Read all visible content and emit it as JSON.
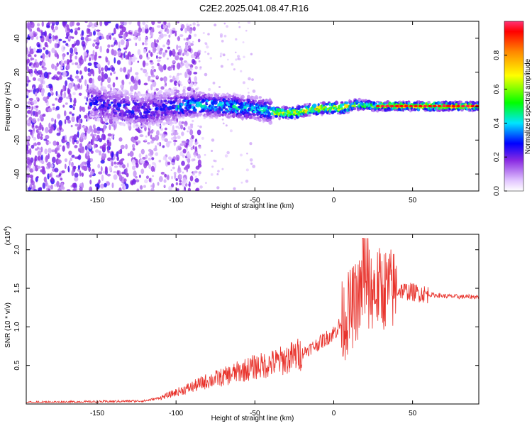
{
  "title": "C2E2.2025.041.08.47.R16",
  "chart_data": [
    {
      "type": "heatmap",
      "xlabel": "Height of straight line (km)",
      "ylabel": "Frequency (Hz)",
      "xlim": [
        -195,
        92
      ],
      "ylim": [
        -50,
        50
      ],
      "xticks": [
        -150,
        -100,
        -50,
        0,
        50
      ],
      "yticks": [
        -40,
        -20,
        0,
        20,
        40
      ],
      "colorbar": {
        "label": "Normalized spectral amplitude",
        "range": [
          0,
          1
        ],
        "ticks": [
          0.0,
          0.2,
          0.4,
          0.6,
          0.8
        ],
        "colors": [
          "#ffffff",
          "#d9b8ff",
          "#8a2be2",
          "#0000ff",
          "#00e5ff",
          "#00ff00",
          "#ffff00",
          "#ff8800",
          "#ff0000"
        ]
      },
      "signal_center_line": [
        [
          -150,
          2
        ],
        [
          -140,
          0
        ],
        [
          -120,
          -3
        ],
        [
          -100,
          0
        ],
        [
          -85,
          1
        ],
        [
          -70,
          0
        ],
        [
          -55,
          -1
        ],
        [
          -45,
          -2
        ],
        [
          -35,
          -4
        ],
        [
          -25,
          -4
        ],
        [
          -15,
          -2
        ],
        [
          -5,
          -1
        ],
        [
          5,
          -1
        ],
        [
          15,
          1
        ],
        [
          25,
          0
        ],
        [
          40,
          0
        ],
        [
          60,
          0
        ],
        [
          90,
          0
        ]
      ]
    },
    {
      "type": "line",
      "xlabel": "Height of straight line (km)",
      "ylabel": "SNR (10 * v/v)",
      "y_scale_note": "(x10",
      "y_scale_exp": "4",
      "xlim": [
        -195,
        92
      ],
      "ylim": [
        0,
        2.2
      ],
      "xticks": [
        -150,
        -100,
        -50,
        0,
        50
      ],
      "yticks": [
        0.5,
        1.0,
        1.5,
        2.0
      ],
      "color": "#e8312a",
      "envelope": [
        [
          -195,
          0.02
        ],
        [
          -150,
          0.03
        ],
        [
          -120,
          0.04
        ],
        [
          -110,
          0.08
        ],
        [
          -100,
          0.15
        ],
        [
          -90,
          0.22
        ],
        [
          -80,
          0.3
        ],
        [
          -70,
          0.35
        ],
        [
          -60,
          0.42
        ],
        [
          -50,
          0.48
        ],
        [
          -40,
          0.52
        ],
        [
          -30,
          0.58
        ],
        [
          -20,
          0.66
        ],
        [
          -10,
          0.78
        ],
        [
          0,
          0.92
        ],
        [
          5,
          1.05
        ],
        [
          10,
          1.2
        ],
        [
          15,
          1.35
        ],
        [
          20,
          1.45
        ],
        [
          25,
          1.48
        ],
        [
          30,
          1.5
        ],
        [
          40,
          1.48
        ],
        [
          50,
          1.45
        ],
        [
          60,
          1.42
        ],
        [
          70,
          1.4
        ],
        [
          80,
          1.39
        ],
        [
          92,
          1.39
        ]
      ]
    }
  ]
}
